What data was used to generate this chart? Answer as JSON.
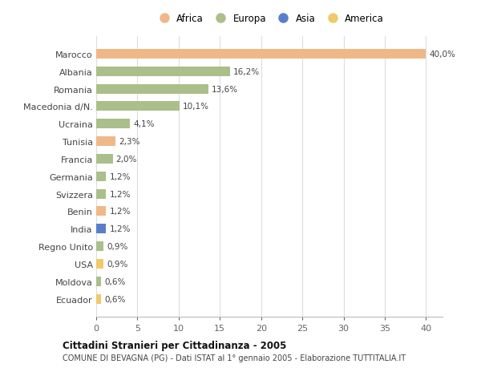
{
  "countries": [
    "Marocco",
    "Albania",
    "Romania",
    "Macedonia d/N.",
    "Ucraina",
    "Tunisia",
    "Francia",
    "Germania",
    "Svizzera",
    "Benin",
    "India",
    "Regno Unito",
    "USA",
    "Moldova",
    "Ecuador"
  ],
  "values": [
    40.0,
    16.2,
    13.6,
    10.1,
    4.1,
    2.3,
    2.0,
    1.2,
    1.2,
    1.2,
    1.2,
    0.9,
    0.9,
    0.6,
    0.6
  ],
  "labels": [
    "40,0%",
    "16,2%",
    "13,6%",
    "10,1%",
    "4,1%",
    "2,3%",
    "2,0%",
    "1,2%",
    "1,2%",
    "1,2%",
    "1,2%",
    "0,9%",
    "0,9%",
    "0,6%",
    "0,6%"
  ],
  "continents": [
    "Africa",
    "Europa",
    "Europa",
    "Europa",
    "Europa",
    "Africa",
    "Europa",
    "Europa",
    "Europa",
    "Africa",
    "Asia",
    "Europa",
    "America",
    "Europa",
    "America"
  ],
  "colors": {
    "Africa": "#F0B888",
    "Europa": "#AABF8A",
    "Asia": "#5B7EC9",
    "America": "#F0C96A"
  },
  "legend_order": [
    "Africa",
    "Europa",
    "Asia",
    "America"
  ],
  "title1": "Cittadini Stranieri per Cittadinanza - 2005",
  "title2": "COMUNE DI BEVAGNA (PG) - Dati ISTAT al 1° gennaio 2005 - Elaborazione TUTTITALIA.IT",
  "xlim": [
    0,
    42
  ],
  "xticks": [
    0,
    5,
    10,
    15,
    20,
    25,
    30,
    35,
    40
  ],
  "bg_color": "#FFFFFF",
  "grid_color": "#DDDDDD"
}
